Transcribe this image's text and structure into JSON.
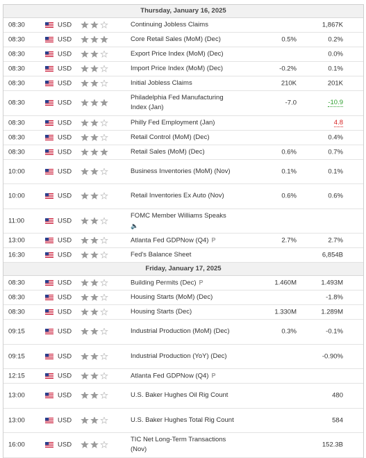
{
  "days": [
    {
      "title": "Thursday, January 16, 2025",
      "events": [
        {
          "time": "08:30",
          "currency": "USD",
          "importance": 2,
          "event": "Continuing Jobless Claims",
          "previous": "1,867K"
        },
        {
          "time": "08:30",
          "currency": "USD",
          "importance": 3,
          "event": "Core Retail Sales (MoM) (Dec)",
          "forecast": "0.5%",
          "previous": "0.2%"
        },
        {
          "time": "08:30",
          "currency": "USD",
          "importance": 2,
          "event": "Export Price Index (MoM) (Dec)",
          "previous": "0.0%"
        },
        {
          "time": "08:30",
          "currency": "USD",
          "importance": 2,
          "event": "Import Price Index (MoM) (Dec)",
          "forecast": "-0.2%",
          "previous": "0.1%"
        },
        {
          "time": "08:30",
          "currency": "USD",
          "importance": 2,
          "event": "Initial Jobless Claims",
          "forecast": "210K",
          "previous": "201K"
        },
        {
          "time": "08:30",
          "currency": "USD",
          "importance": 3,
          "event": "Philadelphia Fed Manufacturing Index (Jan)",
          "forecast": "-7.0",
          "previous": "-10.9",
          "previous_color": "#2e9e2e",
          "revised": true
        },
        {
          "time": "08:30",
          "currency": "USD",
          "importance": 2,
          "event": "Philly Fed Employment (Jan)",
          "previous": "4.8",
          "previous_color": "#d62020",
          "revised": true
        },
        {
          "time": "08:30",
          "currency": "USD",
          "importance": 2,
          "event": "Retail Control (MoM) (Dec)",
          "previous": "0.4%"
        },
        {
          "time": "08:30",
          "currency": "USD",
          "importance": 3,
          "event": "Retail Sales (MoM) (Dec)",
          "forecast": "0.6%",
          "previous": "0.7%"
        },
        {
          "time": "10:00",
          "currency": "USD",
          "importance": 2,
          "event": "Business Inventories (MoM) (Nov)",
          "forecast": "0.1%",
          "previous": "0.1%"
        },
        {
          "time": "10:00",
          "currency": "USD",
          "importance": 2,
          "event": "Retail Inventories Ex Auto (Nov)",
          "forecast": "0.6%",
          "previous": "0.6%"
        },
        {
          "time": "11:00",
          "currency": "USD",
          "importance": 2,
          "event": "FOMC Member Williams Speaks",
          "audio": true
        },
        {
          "time": "13:00",
          "currency": "USD",
          "importance": 2,
          "event": "Atlanta Fed GDPNow (Q4)",
          "tag": "P",
          "forecast": "2.7%",
          "previous": "2.7%"
        },
        {
          "time": "16:30",
          "currency": "USD",
          "importance": 2,
          "event": "Fed's Balance Sheet",
          "previous": "6,854B"
        }
      ]
    },
    {
      "title": "Friday, January 17, 2025",
      "events": [
        {
          "time": "08:30",
          "currency": "USD",
          "importance": 2,
          "event": "Building Permits (Dec)",
          "tag": "P",
          "forecast": "1.460M",
          "previous": "1.493M"
        },
        {
          "time": "08:30",
          "currency": "USD",
          "importance": 2,
          "event": "Housing Starts (MoM) (Dec)",
          "previous": "-1.8%"
        },
        {
          "time": "08:30",
          "currency": "USD",
          "importance": 2,
          "event": "Housing Starts (Dec)",
          "forecast": "1.330M",
          "previous": "1.289M"
        },
        {
          "time": "09:15",
          "currency": "USD",
          "importance": 2,
          "event": "Industrial Production (MoM) (Dec)",
          "forecast": "0.3%",
          "previous": "-0.1%"
        },
        {
          "time": "09:15",
          "currency": "USD",
          "importance": 2,
          "event": "Industrial Production (YoY) (Dec)",
          "previous": "-0.90%"
        },
        {
          "time": "12:15",
          "currency": "USD",
          "importance": 2,
          "event": "Atlanta Fed GDPNow (Q4)",
          "tag": "P"
        },
        {
          "time": "13:00",
          "currency": "USD",
          "importance": 2,
          "event": "U.S. Baker Hughes Oil Rig Count",
          "previous": "480"
        },
        {
          "time": "13:00",
          "currency": "USD",
          "importance": 2,
          "event": "U.S. Baker Hughes Total Rig Count",
          "previous": "584"
        },
        {
          "time": "16:00",
          "currency": "USD",
          "importance": 2,
          "event": "TIC Net Long-Term Transactions (Nov)",
          "previous": "152.3B"
        }
      ]
    }
  ]
}
